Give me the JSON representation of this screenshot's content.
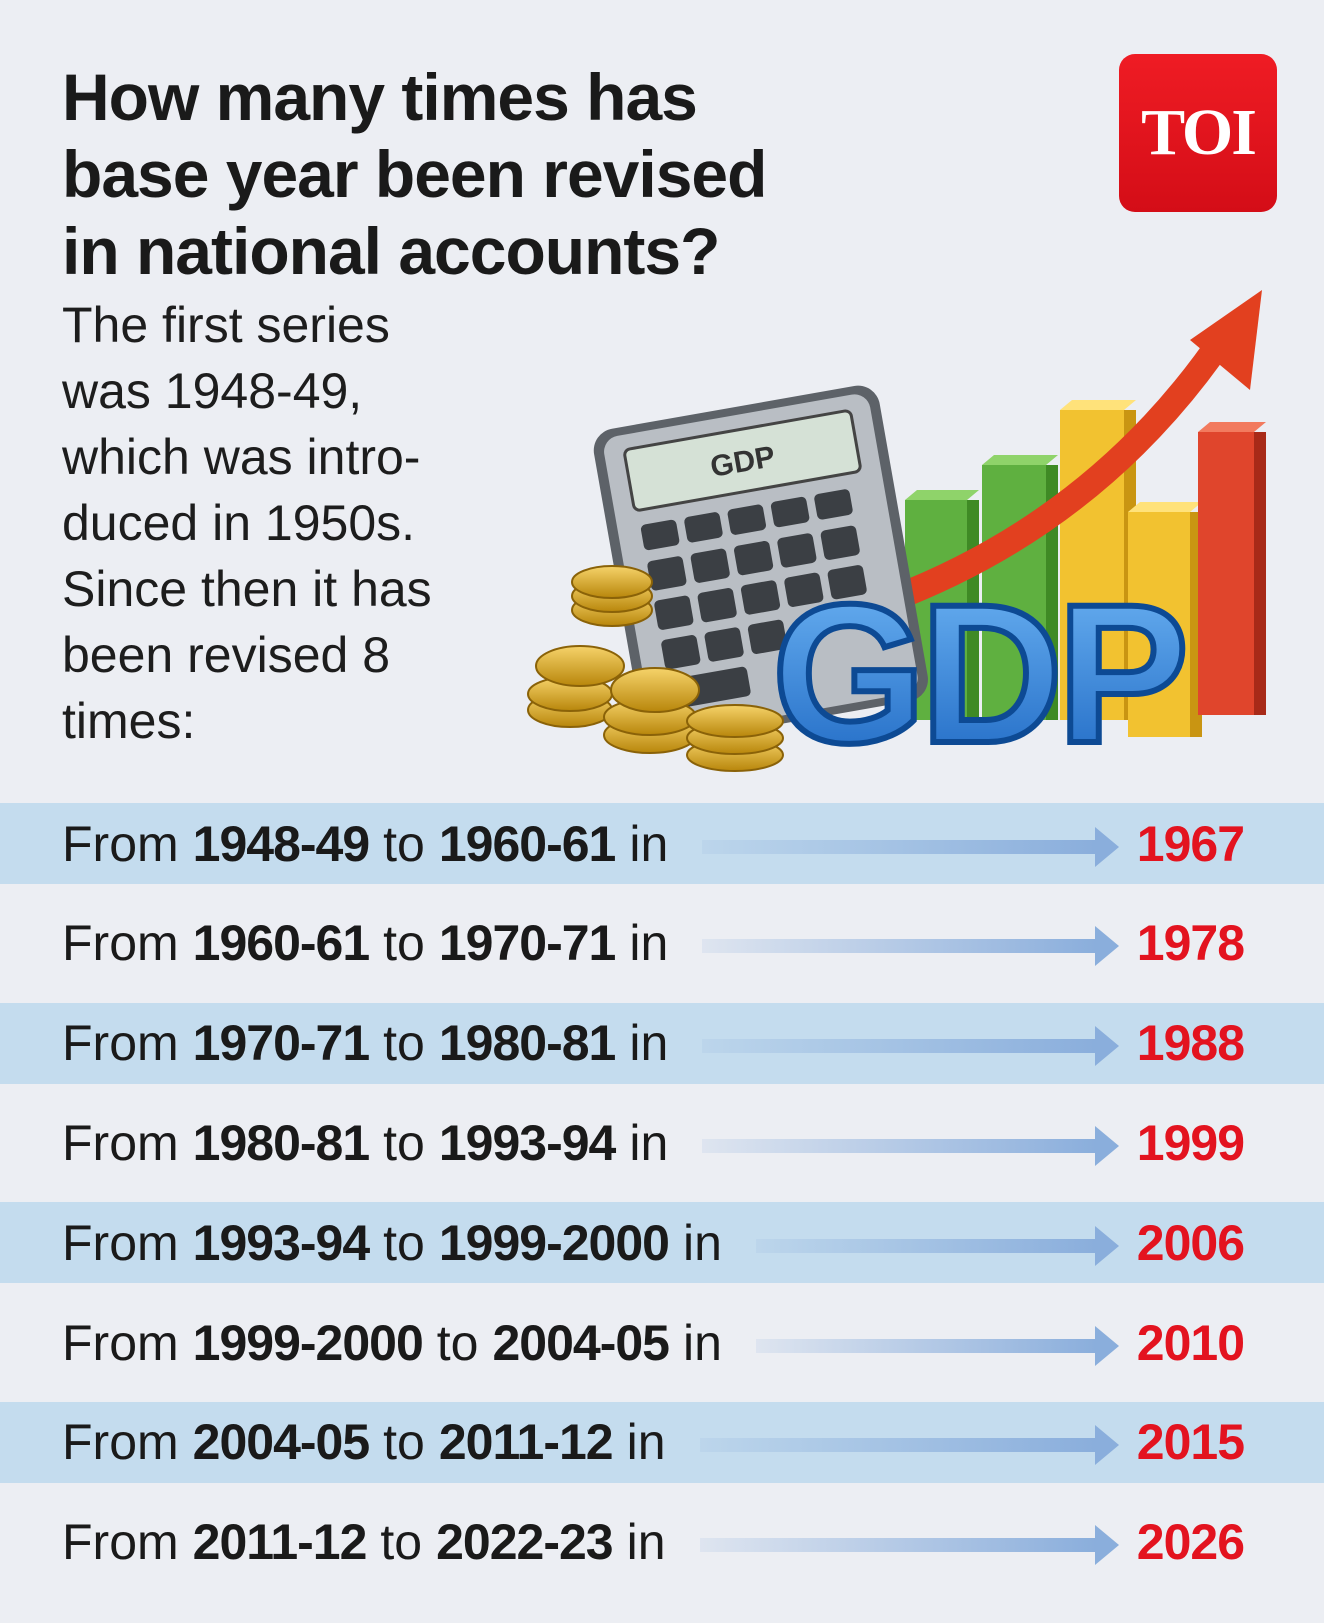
{
  "header": {
    "title_lines": [
      "How many times has",
      "base year been revised",
      "in national accounts?"
    ],
    "logo": "TOI"
  },
  "intro": {
    "lines": [
      "The first series",
      "was 1948-49,",
      "which was intro-",
      "duced in 1950s.",
      "Since then it has",
      "been revised 8",
      "times:"
    ]
  },
  "illustration": {
    "screen_label": "GDP",
    "big_label": "GDP"
  },
  "rows": [
    {
      "from": "From",
      "start": "1948-49",
      "to": "to",
      "end": "1960-61",
      "in": "in",
      "year": "1967"
    },
    {
      "from": "From",
      "start": "1960-61",
      "to": "to",
      "end": "1970-71",
      "in": "in",
      "year": "1978"
    },
    {
      "from": "From",
      "start": "1970-71",
      "to": "to",
      "end": "1980-81",
      "in": "in",
      "year": "1988"
    },
    {
      "from": "From",
      "start": "1980-81",
      "to": "to",
      "end": "1993-94",
      "in": "in",
      "year": "1999"
    },
    {
      "from": "From",
      "start": "1993-94",
      "to": "to",
      "end": "1999-2000",
      "in": "in",
      "year": "2006"
    },
    {
      "from": "From",
      "start": "1999-2000",
      "to": "to",
      "end": "2004-05",
      "in": "in",
      "year": "2010"
    },
    {
      "from": "From",
      "start": "2004-05",
      "to": "to",
      "end": "2011-12",
      "in": "in",
      "year": "2015"
    },
    {
      "from": "From",
      "start": "2011-12",
      "to": "to",
      "end": "2022-23",
      "in": "in",
      "year": "2026"
    }
  ]
}
